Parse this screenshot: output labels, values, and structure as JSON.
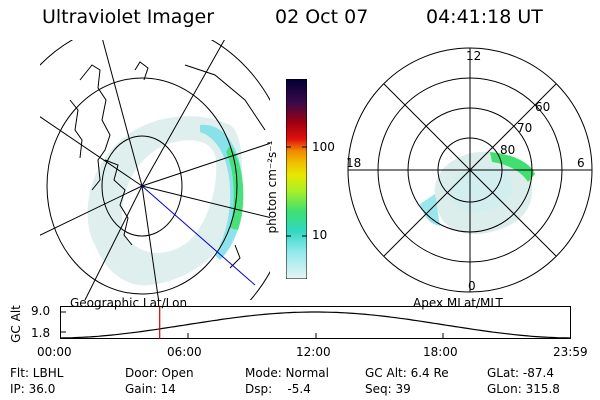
{
  "header": {
    "title": "Ultraviolet Imager",
    "date": "02 Oct 07",
    "time": "04:41:18 UT"
  },
  "colorbar": {
    "unit_label": "photon cm⁻²s⁻¹",
    "ticks": [
      "100",
      "10"
    ],
    "colors": [
      "#000033",
      "#3a0a4a",
      "#6a0a30",
      "#a00010",
      "#d01010",
      "#f05000",
      "#f08a00",
      "#f0c000",
      "#e8e800",
      "#a8f028",
      "#40e070",
      "#30d8c0",
      "#8fe8ec",
      "#cfeff0",
      "#e8f4f4"
    ]
  },
  "geo_panel": {
    "label": "Geographic Lat/Lon"
  },
  "apex_panel": {
    "label": "Apex MLat/MLT",
    "mlt_labels": [
      "12",
      "18",
      "6",
      "0"
    ],
    "lat_labels": [
      "60",
      "70",
      "80"
    ]
  },
  "altitude_plot": {
    "ylabel": "GC Alt",
    "ytick_top": "9.0",
    "ytick_bottom": "1.8",
    "xticks": [
      "00:00",
      "06:00",
      "12:00",
      "18:00",
      "23:59"
    ],
    "marker_time_hours": 4.69
  },
  "footer": {
    "flt": "Flt: LBHL",
    "ip": "IP: 36.0",
    "door": "Door: Open",
    "gain": "Gain: 14",
    "mode": "Mode: Normal",
    "dsp": "Dsp:    -5.4",
    "gcalt": "GC Alt: 6.4 Re",
    "seq": "Seq: 39",
    "glat": "GLat: -87.4",
    "glon": "GLon: 315.8"
  },
  "colors": {
    "aurora_light": "#d8ecea",
    "aurora_cyan": "#80e0e8",
    "aurora_green": "#40e070",
    "marker": "#d00000",
    "track": "#0000cc"
  }
}
